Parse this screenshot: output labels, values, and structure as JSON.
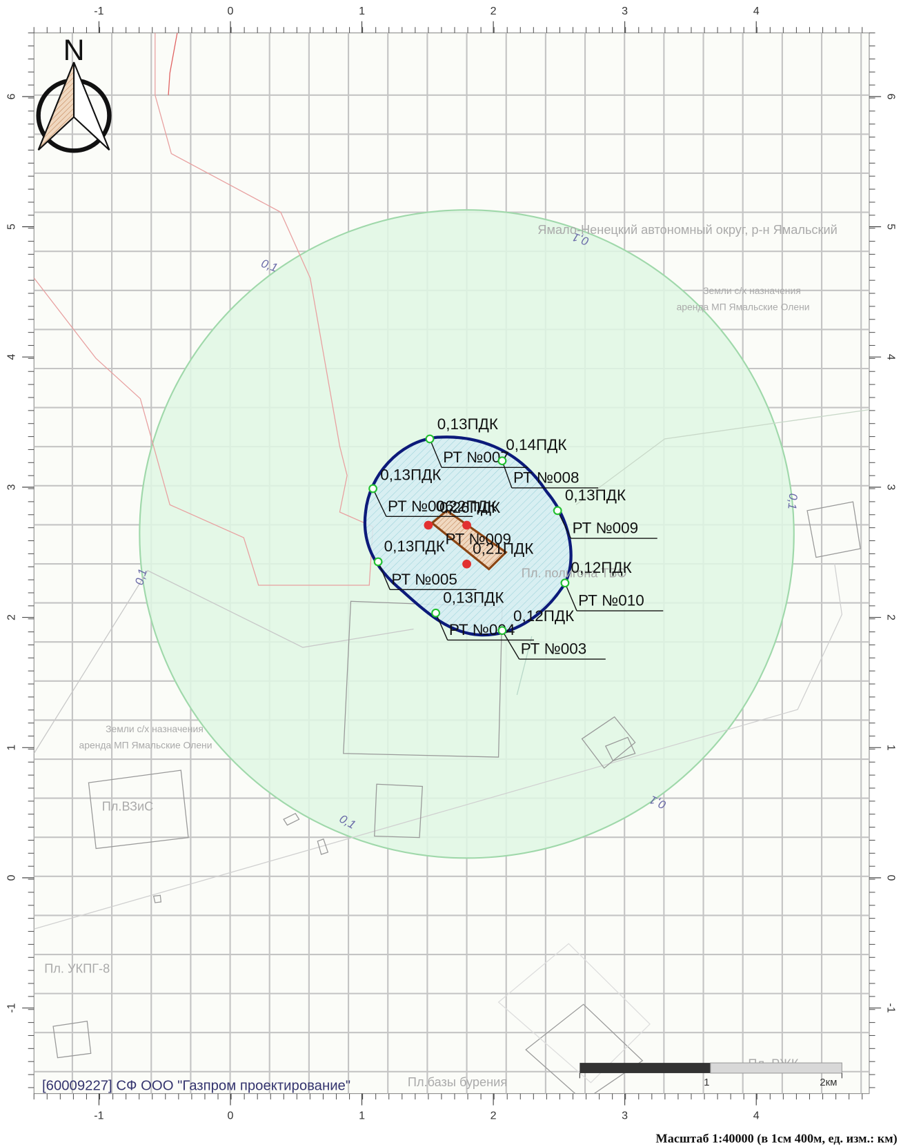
{
  "map": {
    "north": "N",
    "xticks": [
      -1,
      0,
      1,
      2,
      3,
      4
    ],
    "yticks": [
      6,
      5,
      4,
      3,
      2,
      1,
      0,
      -1
    ],
    "contour_labels": [
      "0,1",
      "0,1",
      "0,1",
      "0,1",
      "0,1",
      "0,1"
    ],
    "points": [
      {
        "value": "0,13ПДК",
        "name": "РТ №007"
      },
      {
        "value": "0,14ПДК",
        "name": "РТ №008"
      },
      {
        "value": "0,13ПДК",
        "name": "РТ №006"
      },
      {
        "value": "0,13ПДК",
        "name": "РТ №009"
      },
      {
        "value": "0,13ПДК",
        "name": "РТ №005"
      },
      {
        "value": "0,12ПДК",
        "name": "РТ №010"
      },
      {
        "value": "0,13ПДК",
        "name": "РТ №004"
      },
      {
        "value": "0,12ПДК",
        "name": "РТ №003"
      }
    ],
    "center_labels": [
      "0,22ПДК",
      "0,26ПДК",
      "РТ №009",
      "0,21ПДК"
    ],
    "areas": [
      "Ямало-Ненецкий автономный округ, р-н Ямальский",
      "Земли с/х назначения",
      "аренда МП Ямальские Олени",
      "Земли с/х назначения",
      "аренда МП Ямальские Олени",
      "Пл.ВЗиС",
      "Пл. УКПГ-8",
      "Пл.базы бурения",
      "Пл. РЖК",
      "Пл. полигона ТБО"
    ]
  },
  "scale_bar": {
    "labels": [
      "1",
      "2км"
    ]
  },
  "footer": {
    "organization": "[60009227] СФ ООО \"Газпром проектирование\"",
    "scale": "Масштаб 1:40000 (в 1см 400м, ед. изм.: км)"
  }
}
